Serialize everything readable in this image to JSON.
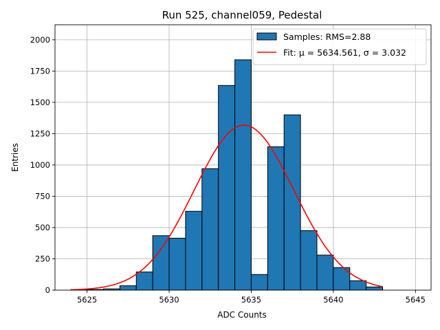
{
  "chart_data": {
    "type": "bar",
    "title": "Run 525, channel059, Pedestal",
    "xlabel": "ADC Counts",
    "ylabel": "Entries",
    "xlim": [
      5623.05,
      5645.95
    ],
    "ylim": [
      0,
      2120
    ],
    "xticks": [
      5625,
      5630,
      5635,
      5640,
      5645
    ],
    "yticks": [
      0,
      250,
      500,
      750,
      1000,
      1250,
      1500,
      1750,
      2000
    ],
    "grid": true,
    "legend_position": "top-right",
    "bin_width": 1,
    "bin_starts": [
      5624,
      5625,
      5626,
      5627,
      5628,
      5629,
      5630,
      5631,
      5632,
      5633,
      5634,
      5635,
      5636,
      5637,
      5638,
      5639,
      5640,
      5641,
      5642
    ],
    "values": [
      3,
      5,
      10,
      35,
      145,
      435,
      415,
      630,
      970,
      1635,
      1840,
      125,
      1145,
      1400,
      475,
      280,
      180,
      75,
      25
    ],
    "fit": {
      "type": "gaussian",
      "mu": 5634.561,
      "sigma": 3.032,
      "amplitude": 1318,
      "x_range": [
        5624,
        5643
      ]
    },
    "series": [
      {
        "name": "Samples: RMS=2.88",
        "kind": "histogram",
        "color": "#1f77b4"
      },
      {
        "name": "Fit: μ = 5634.561, σ = 3.032",
        "kind": "line",
        "color": "#ff0000"
      }
    ]
  }
}
